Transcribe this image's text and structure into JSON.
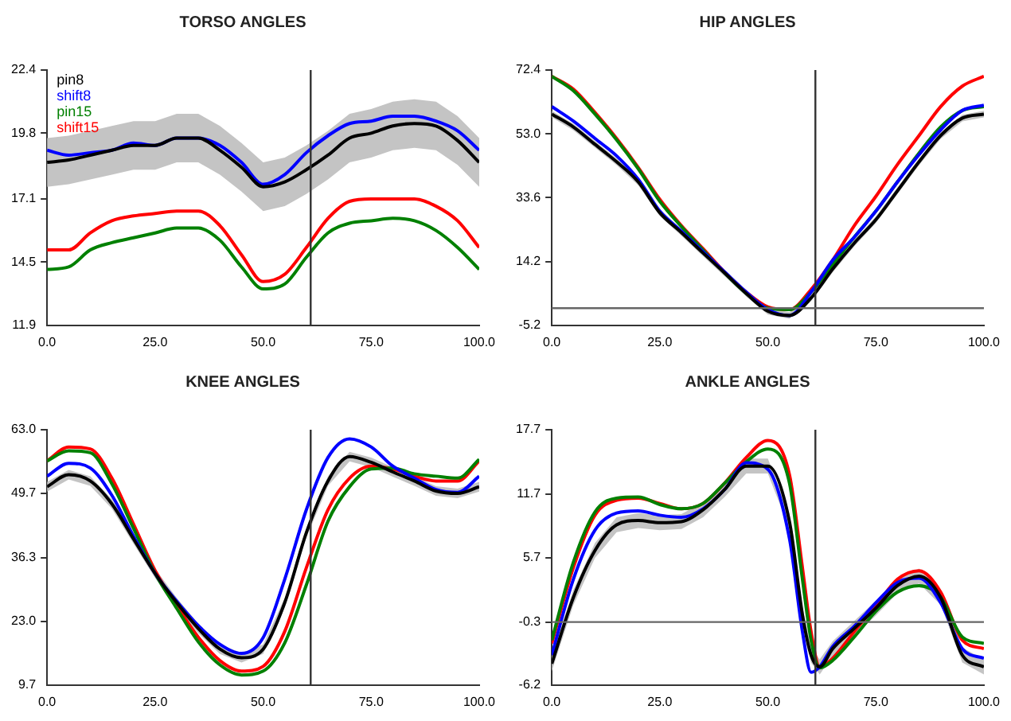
{
  "chart_data": [
    {
      "type": "line",
      "title": "TORSO ANGLES",
      "x": [
        0,
        5,
        10,
        15,
        20,
        25,
        30,
        35,
        40,
        45,
        50,
        55,
        60,
        65,
        70,
        75,
        80,
        85,
        90,
        95,
        100
      ],
      "xlim": [
        0,
        100
      ],
      "xticks": [
        {
          "value": 0,
          "label": "0.0"
        },
        {
          "value": 25,
          "label": "25.0"
        },
        {
          "value": 50,
          "label": "50.0"
        },
        {
          "value": 75,
          "label": "75.0"
        },
        {
          "value": 100,
          "label": "100.0"
        }
      ],
      "ylim": [
        11.9,
        22.4
      ],
      "yticks": [
        11.9,
        14.5,
        17.1,
        19.8,
        22.4
      ],
      "legend": "top left",
      "grid": false,
      "ref_lines": [
        {
          "axis": "x",
          "value": 61,
          "color": "#333333"
        }
      ],
      "series": [
        {
          "name": "pin8",
          "color": "#000000",
          "values": [
            18.6,
            18.7,
            18.9,
            19.1,
            19.3,
            19.3,
            19.6,
            19.6,
            19.1,
            18.4,
            17.6,
            17.8,
            18.3,
            18.9,
            19.6,
            19.8,
            20.1,
            20.2,
            20.1,
            19.5,
            18.6
          ],
          "upper": [
            19.6,
            19.7,
            19.9,
            20.1,
            20.3,
            20.3,
            20.6,
            20.6,
            20.1,
            19.4,
            18.6,
            18.8,
            19.3,
            19.9,
            20.6,
            20.8,
            21.1,
            21.2,
            21.1,
            20.5,
            19.6
          ],
          "lower": [
            17.6,
            17.7,
            17.9,
            18.1,
            18.3,
            18.3,
            18.6,
            18.6,
            18.1,
            17.4,
            16.6,
            16.8,
            17.3,
            17.9,
            18.6,
            18.8,
            19.1,
            19.2,
            19.1,
            18.5,
            17.6
          ]
        },
        {
          "name": "shift8",
          "color": "#0000ff",
          "values": [
            19.1,
            18.9,
            19.0,
            19.1,
            19.4,
            19.3,
            19.6,
            19.6,
            19.3,
            18.6,
            17.7,
            18.1,
            19.0,
            19.7,
            20.2,
            20.3,
            20.5,
            20.5,
            20.3,
            19.9,
            19.1
          ]
        },
        {
          "name": "pin15",
          "color": "#008000",
          "values": [
            14.2,
            14.3,
            15.0,
            15.3,
            15.5,
            15.7,
            15.9,
            15.9,
            15.4,
            14.3,
            13.4,
            13.6,
            14.7,
            15.7,
            16.1,
            16.2,
            16.3,
            16.2,
            15.8,
            15.1,
            14.2
          ]
        },
        {
          "name": "shift15",
          "color": "#ff0000",
          "values": [
            15.0,
            15.0,
            15.7,
            16.2,
            16.4,
            16.5,
            16.6,
            16.6,
            16.0,
            14.8,
            13.7,
            14.0,
            15.1,
            16.3,
            17.0,
            17.1,
            17.1,
            17.1,
            16.8,
            16.2,
            15.1
          ]
        }
      ]
    },
    {
      "type": "line",
      "title": "HIP ANGLES",
      "x": [
        0,
        5,
        10,
        15,
        20,
        25,
        30,
        35,
        40,
        45,
        50,
        55,
        60,
        65,
        70,
        75,
        80,
        85,
        90,
        95,
        100
      ],
      "xlim": [
        0,
        100
      ],
      "xticks": [
        {
          "value": 0,
          "label": "0.0"
        },
        {
          "value": 25,
          "label": "25.0"
        },
        {
          "value": 50,
          "label": "50.0"
        },
        {
          "value": 75,
          "label": "75.0"
        },
        {
          "value": 100,
          "label": "100.0"
        }
      ],
      "ylim": [
        -5.2,
        72.4
      ],
      "yticks": [
        -5.2,
        14.2,
        33.6,
        {
          "value": 53,
          "label": "53.0"
        },
        72.4
      ],
      "grid": false,
      "ref_lines": [
        {
          "axis": "x",
          "value": 61,
          "color": "#333333"
        },
        {
          "axis": "y",
          "value": 0,
          "color": "#666666"
        }
      ],
      "series": [
        {
          "color": "#000000",
          "values": [
            59,
            55.1,
            49.8,
            44.5,
            38.4,
            29,
            23,
            16.8,
            10.7,
            4.5,
            -0.9,
            -2.2,
            3.1,
            11.9,
            19.8,
            26.9,
            35.7,
            44.5,
            52.5,
            57.8,
            59
          ],
          "upper": [
            60,
            56.1,
            50.8,
            45.5,
            39.4,
            30,
            24,
            17.8,
            11.7,
            5.5,
            0.1,
            -1.2,
            4.1,
            12.9,
            20.8,
            27.9,
            36.7,
            45.5,
            53.5,
            58.8,
            60
          ],
          "lower": [
            58,
            54.1,
            48.8,
            43.5,
            37.4,
            28,
            22,
            15.8,
            9.7,
            3.5,
            -1.9,
            -3.2,
            2.1,
            10.9,
            18.8,
            25.9,
            34.7,
            43.5,
            51.5,
            56.8,
            58
          ]
        },
        {
          "color": "#0000ff",
          "values": [
            61.3,
            56.9,
            51.6,
            46.3,
            39.2,
            29.5,
            23.4,
            17.2,
            11.0,
            4.9,
            -0.4,
            -2.2,
            4.9,
            14.6,
            21.6,
            29.5,
            38.4,
            46.7,
            54.2,
            60.1,
            61.7
          ]
        },
        {
          "color": "#008000",
          "values": [
            70.5,
            66.1,
            59,
            51.2,
            42.4,
            32.5,
            24.8,
            17.7,
            10.7,
            4.5,
            0,
            -0.4,
            4.9,
            13.3,
            21.6,
            29.5,
            38.4,
            47.2,
            55.1,
            60.1,
            61.3
          ]
        },
        {
          "color": "#ff0000",
          "values": [
            70.5,
            66.6,
            59.5,
            51.6,
            42.8,
            33.1,
            25.1,
            18.1,
            11.0,
            4.9,
            0.4,
            -0.4,
            5.7,
            14.6,
            25.1,
            34,
            43.7,
            52.5,
            61.3,
            67.5,
            70.5
          ]
        }
      ]
    },
    {
      "type": "line",
      "title": "KNEE ANGLES",
      "x": [
        0,
        5,
        10,
        15,
        20,
        25,
        30,
        35,
        40,
        45,
        50,
        55,
        60,
        65,
        70,
        75,
        80,
        85,
        90,
        95,
        100
      ],
      "xlim": [
        0,
        100
      ],
      "xticks": [
        {
          "value": 0,
          "label": "0.0"
        },
        {
          "value": 25,
          "label": "25.0"
        },
        {
          "value": 50,
          "label": "50.0"
        },
        {
          "value": 75,
          "label": "75.0"
        },
        {
          "value": 100,
          "label": "100.0"
        }
      ],
      "ylim": [
        9.7,
        63
      ],
      "yticks": [
        9.7,
        {
          "value": 23,
          "label": "23.0"
        },
        36.3,
        49.7,
        {
          "value": 63,
          "label": "63.0"
        }
      ],
      "grid": false,
      "ref_lines": [
        {
          "axis": "x",
          "value": 61,
          "color": "#333333"
        }
      ],
      "series": [
        {
          "color": "#000000",
          "values": [
            51.1,
            53.6,
            52.3,
            47.5,
            40.2,
            33,
            26.9,
            21.5,
            17.2,
            15.4,
            17.2,
            26.9,
            41.5,
            52.3,
            57.4,
            56.2,
            54.2,
            52.3,
            50.2,
            49.7,
            51.1
          ],
          "upper": [
            52.1,
            54.6,
            53.3,
            48.5,
            41.2,
            34,
            27.9,
            22.5,
            18.2,
            16.4,
            18.2,
            27.9,
            42.5,
            53.3,
            58.4,
            57.2,
            55.2,
            53.3,
            51.2,
            50.7,
            52.1
          ],
          "lower": [
            50.1,
            52.6,
            51.3,
            46.5,
            39.2,
            32,
            25.9,
            20.5,
            16.2,
            14.4,
            16.2,
            25.9,
            40.5,
            51.3,
            56.4,
            55.2,
            53.2,
            51.3,
            49.2,
            48.7,
            50.1
          ]
        },
        {
          "color": "#0000ff",
          "values": [
            53.3,
            56,
            55,
            49.3,
            40.8,
            33,
            27.2,
            22.1,
            18.2,
            16.3,
            19.6,
            31.8,
            46.3,
            57.2,
            61.1,
            59.4,
            55.4,
            52.9,
            50.5,
            49.9,
            53.3
          ]
        },
        {
          "color": "#008000",
          "values": [
            56.5,
            58.6,
            58.2,
            51.7,
            42.4,
            33,
            25.7,
            18.7,
            13.9,
            11.8,
            12.6,
            18.5,
            30.6,
            43.9,
            51.1,
            54.8,
            55.0,
            53.8,
            53.3,
            52.9,
            56.8
          ]
        },
        {
          "color": "#ff0000",
          "values": [
            56.5,
            59.4,
            59,
            52.9,
            43.3,
            33.6,
            26.3,
            19.7,
            14.8,
            12.6,
            13.6,
            20.9,
            34.2,
            46.3,
            52.9,
            55.4,
            54.8,
            53.3,
            52.3,
            52.3,
            56.5
          ]
        }
      ]
    },
    {
      "type": "line",
      "title": "ANKLE ANGLES",
      "x": [
        0,
        5,
        10,
        15,
        20,
        25,
        30,
        35,
        40,
        45,
        50,
        55,
        58,
        60,
        62,
        65,
        70,
        75,
        80,
        85,
        90,
        95,
        100
      ],
      "xlim": [
        0,
        100
      ],
      "xticks": [
        {
          "value": 0,
          "label": "0.0"
        },
        {
          "value": 25,
          "label": "25.0"
        },
        {
          "value": 50,
          "label": "50.0"
        },
        {
          "value": 75,
          "label": "75.0"
        },
        {
          "value": 100,
          "label": "100.0"
        }
      ],
      "ylim": [
        -6.2,
        17.7
      ],
      "yticks": [
        -6.2,
        -0.3,
        5.7,
        11.7,
        17.7
      ],
      "grid": false,
      "ref_lines": [
        {
          "axis": "x",
          "value": 61,
          "color": "#333333"
        },
        {
          "axis": "y",
          "value": -0.3,
          "color": "#666666"
        }
      ],
      "series": [
        {
          "color": "#000000",
          "values": [
            -4.2,
            2,
            6.4,
            8.8,
            9.2,
            9,
            9.1,
            10.2,
            12.1,
            14.3,
            14.3,
            9.1,
            0.4,
            -3.4,
            -4.5,
            -2.8,
            -0.9,
            1,
            3.1,
            4,
            2,
            -3.4,
            -4.5
          ],
          "upper": [
            -3.5,
            2.7,
            7.1,
            9.5,
            9.9,
            9.7,
            9.8,
            10.9,
            12.8,
            15,
            15,
            9.8,
            1.1,
            -2.7,
            -3.8,
            -2.1,
            -0.2,
            1.7,
            3.8,
            4.7,
            2.7,
            -2.7,
            -3.8
          ],
          "lower": [
            -4.9,
            1.3,
            5.7,
            8.1,
            8.5,
            8.3,
            8.4,
            9.5,
            11.4,
            13.6,
            13.6,
            8.4,
            -0.3,
            -4.1,
            -5.2,
            -3.5,
            -1.6,
            0.3,
            2.4,
            3.3,
            1.3,
            -4.1,
            -5.2
          ]
        },
        {
          "color": "#0000ff",
          "values": [
            -3.4,
            3.7,
            8.3,
            9.9,
            10.1,
            9.7,
            9.5,
            10.3,
            12.1,
            14.6,
            14.0,
            7.5,
            -1.2,
            -5.0,
            -4.5,
            -2.6,
            -0.7,
            1.5,
            3.4,
            3.8,
            1.5,
            -2.8,
            -3.7
          ]
        },
        {
          "color": "#008000",
          "values": [
            -2.0,
            5.3,
            10.0,
            11.3,
            11.4,
            10.7,
            10.3,
            10.8,
            12.7,
            14.7,
            15.9,
            12.7,
            3.7,
            -2.0,
            -4.6,
            -3.9,
            -1.7,
            0.7,
            2.5,
            3.1,
            2.0,
            -1.7,
            -2.3
          ]
        },
        {
          "color": "#ff0000",
          "values": [
            -2.3,
            4.8,
            9.7,
            11.1,
            11.3,
            10.8,
            10.3,
            10.8,
            12.7,
            15.1,
            16.7,
            13.5,
            4.8,
            -1.2,
            -4.5,
            -3.7,
            -1.2,
            1.2,
            3.7,
            4.5,
            2.5,
            -2.0,
            -2.8
          ]
        }
      ]
    }
  ]
}
